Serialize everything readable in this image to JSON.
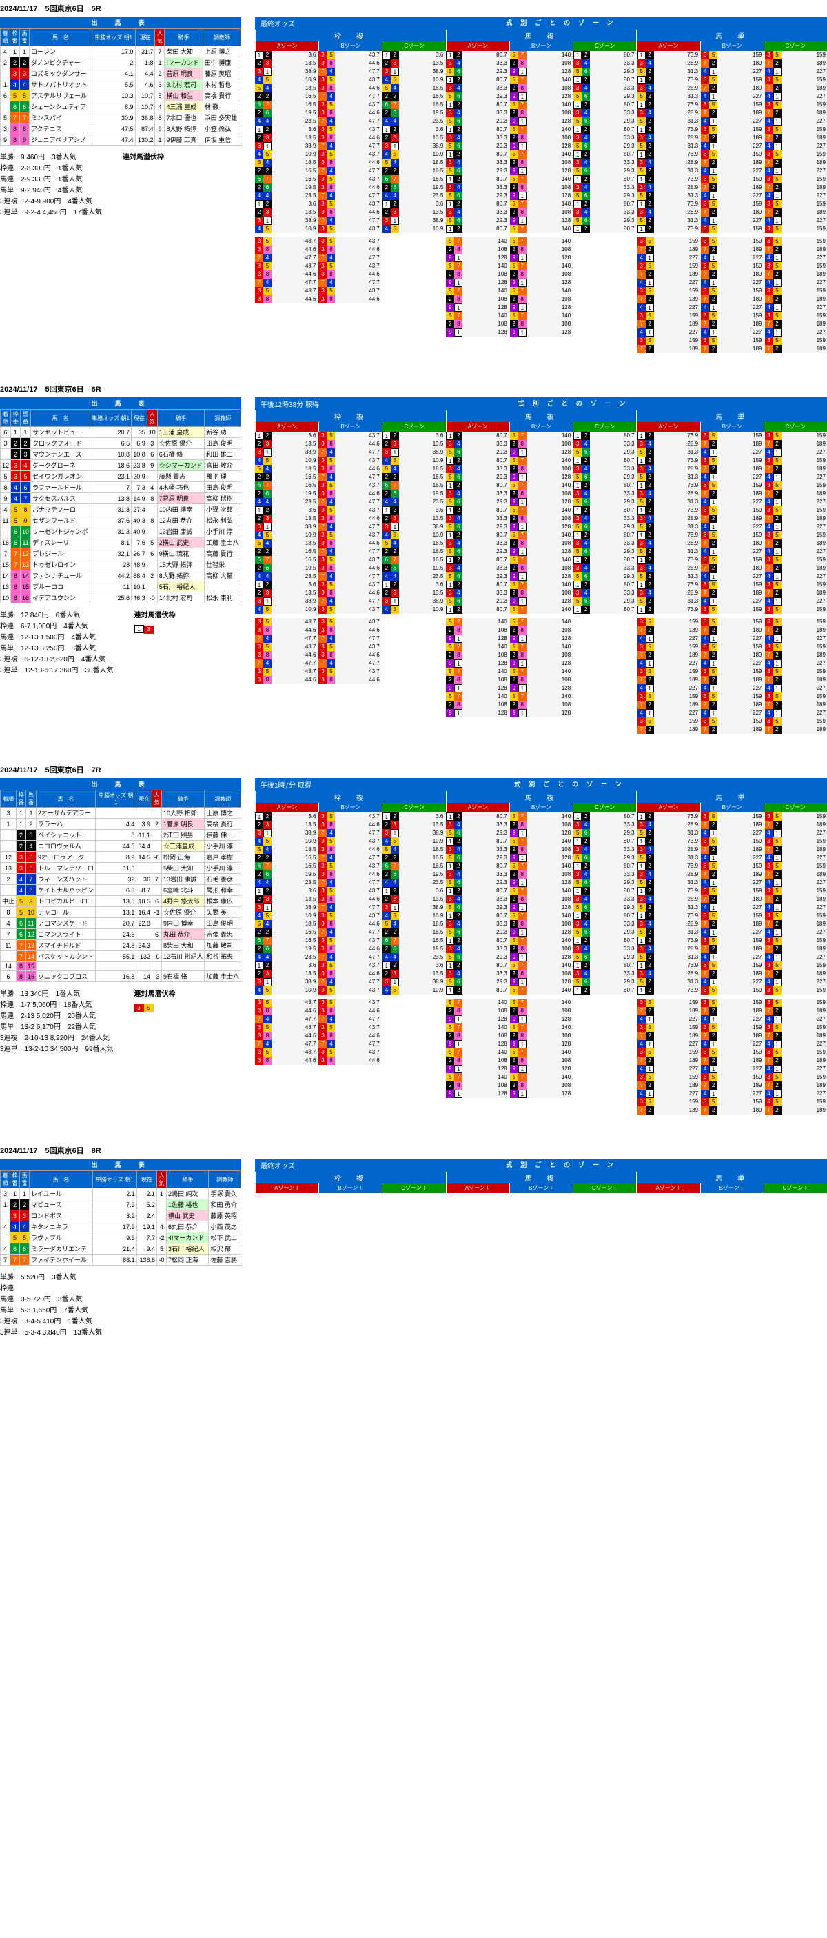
{
  "races": [
    {
      "header": "2024/11/17　5回東京6日　5R",
      "odds_label": "最終オッズ",
      "horses": [
        {
          "fin": "4",
          "waku": 1,
          "num": 1,
          "name": "ローレン",
          "o1": "17.9",
          "o2": "31.7",
          "fav": "7",
          "jk": "柴田 大知",
          "tr": "上原 博之"
        },
        {
          "fin": "2",
          "waku": 2,
          "num": 2,
          "name": "ダノンビクチャー",
          "o1": "2",
          "o2": "1.8",
          "fav": "1",
          "jk": "!マーカンド",
          "tr": "田中 博康",
          "hl": "jockey-hl2"
        },
        {
          "fin": "",
          "waku": 3,
          "num": 3,
          "name": "コズミックダンサー",
          "o1": "4.1",
          "o2": "4.4",
          "fav": "2",
          "jk": "菅原 明良",
          "tr": "藤原 英昭",
          "hl": "jockey-hl1"
        },
        {
          "fin": "1",
          "waku": 4,
          "num": 4,
          "name": "サトノパトリオット",
          "o1": "5.5",
          "o2": "4.6",
          "fav": "3",
          "jk": "3北村 宏司",
          "tr": "木村 哲也",
          "hl": "jockey-hl2"
        },
        {
          "fin": "6",
          "waku": 5,
          "num": 5,
          "name": "アステルリヴェール",
          "o1": "10.3",
          "o2": "10.7",
          "fav": "5",
          "jk": "横山 和生",
          "tr": "高橋 貴行",
          "hl": "jockey-hl1"
        },
        {
          "fin": "",
          "waku": 6,
          "num": 6,
          "name": "シェーンシュティア",
          "o1": "8.9",
          "o2": "10.7",
          "fav": "4",
          "jk": "4三浦 皇成",
          "tr": "林 徹",
          "hl": "jockey-hl3"
        },
        {
          "fin": "5",
          "waku": 7,
          "num": 7,
          "name": "ミンスパイ",
          "o1": "30.9",
          "o2": "36.8",
          "fav": "8",
          "jk": "7水口 優也",
          "tr": "浜田 多実雄"
        },
        {
          "fin": "3",
          "waku": 8,
          "num": 8,
          "name": "アクテニス",
          "o1": "47.5",
          "o2": "87.4",
          "fav": "9",
          "jk": "8大野 拓弥",
          "tr": "小笠 倫弘"
        },
        {
          "fin": "9",
          "waku": 8,
          "num": 9,
          "name": "ジュニアベリアシノ",
          "o1": "47.4",
          "o2": "130.2",
          "fav": "1",
          "jk": "9伊藤 工真",
          "tr": "伊坂 重信"
        }
      ],
      "summary": [
        "単勝　9 460円　3番人気",
        "枠連　2-8 300円　1番人気",
        "馬連　2-9 330円　1番人気",
        "馬単　9-2 940円　4番人気",
        "3連複　2-4-9 900円　4番人気",
        "3連単　9-2-4 4,450円　17番人気"
      ],
      "legend": "連対馬潜伏枠",
      "legend_nums": []
    },
    {
      "header": "2024/11/17　5回東京6日　6R",
      "odds_label": "午後12時38分 取得",
      "horses": [
        {
          "fin": "6",
          "waku": 1,
          "num": 1,
          "name": "サンセットビュー",
          "o1": "20.7",
          "o2": "35",
          "fav": "10",
          "jk": "1三浦 皇成",
          "tr": "新谷 功",
          "hl": "jockey-hl3"
        },
        {
          "fin": "3",
          "waku": 2,
          "num": 2,
          "name": "クロックフォード",
          "o1": "6.5",
          "o2": "6.9",
          "fav": "3",
          "jk": "☆佐原 優介",
          "tr": "田島 俊明"
        },
        {
          "fin": "",
          "waku": 2,
          "num": 3,
          "name": "マウンテンエース",
          "o1": "10.8",
          "o2": "10.8",
          "fav": "6",
          "jk": "6石橋 脩",
          "tr": "和田 雄二"
        },
        {
          "fin": "12",
          "waku": 3,
          "num": 4,
          "name": "グークグローネ",
          "o1": "18.6",
          "o2": "23.8",
          "fav": "9",
          "jk": "☆シマーカンド",
          "tr": "宮田 敬介",
          "hl": "jockey-hl2"
        },
        {
          "fin": "5",
          "waku": 3,
          "num": 5,
          "name": "セイウンガレオン",
          "o1": "23.1",
          "o2": "20.9",
          "fav": "",
          "jk": "藤懸 貴志",
          "tr": "萬平 理"
        },
        {
          "fin": "8",
          "waku": 4,
          "num": 6,
          "name": "ラファールドール",
          "o1": "7",
          "o2": "7.3",
          "fav": "4",
          "jk": "4木幡 巧也",
          "tr": "田島 俊明"
        },
        {
          "fin": "9",
          "waku": 4,
          "num": 7,
          "name": "サクセスバルス",
          "o1": "13.8",
          "o2": "14.9",
          "fav": "8",
          "jk": "7菅原 明良",
          "tr": "高柳 瑞樹",
          "hl": "jockey-hl1"
        },
        {
          "fin": "4",
          "waku": 5,
          "num": 8,
          "name": "パナマテソーロ",
          "o1": "31.8",
          "o2": "27.4",
          "fav": "",
          "jk": "10内田 博幸",
          "tr": "小野 次郎"
        },
        {
          "fin": "11",
          "waku": 5,
          "num": 9,
          "name": "セザンワールド",
          "o1": "37.6",
          "o2": "40.3",
          "fav": "8",
          "jk": "12丸田 恭介",
          "tr": "松永 利弘"
        },
        {
          "fin": "",
          "waku": 6,
          "num": 10,
          "name": "リーゼントジャンボ",
          "o1": "31.3",
          "o2": "40.9",
          "fav": "",
          "jk": "13岩田 康誠",
          "tr": "小手川 淳"
        },
        {
          "fin": "16",
          "waku": 6,
          "num": 11,
          "name": "ディスレーリ",
          "o1": "8.1",
          "o2": "7.6",
          "fav": "5",
          "jk": "2横山 武史",
          "tr": "工藤 圭士八",
          "hl": "jockey-hl1"
        },
        {
          "fin": "7",
          "waku": 7,
          "num": 12,
          "name": "プレジール",
          "o1": "32.1",
          "o2": "26.7",
          "fav": "6",
          "jk": "9横山 琉花",
          "tr": "高藤 貴行"
        },
        {
          "fin": "15",
          "waku": 7,
          "num": 13,
          "name": "トゥゼレロイン",
          "o1": "28",
          "o2": "48.9",
          "fav": "",
          "jk": "15大野 拓弥",
          "tr": "仕智栄"
        },
        {
          "fin": "14",
          "waku": 8,
          "num": 14,
          "name": "ファンナチュール",
          "o1": "44.2",
          "o2": "88.4",
          "fav": "2",
          "jk": "8大野 拓弥",
          "tr": "高柳 大輔"
        },
        {
          "fin": "13",
          "waku": 8,
          "num": 15,
          "name": "ブルーココ",
          "o1": "11",
          "o2": "10.1",
          "fav": "",
          "jk": "5石川 裕紀人",
          "tr": "",
          "hl": "jockey-hl3"
        },
        {
          "fin": "10",
          "waku": 8,
          "num": 16,
          "name": "イデアユウシン",
          "o1": "25.6",
          "o2": "46.3",
          "fav": "-0",
          "jk": "14北村 宏司",
          "tr": "松永 康利"
        }
      ],
      "summary": [
        "単勝　12 840円　6番人気",
        "枠連　6-7 1,000円　4番人気",
        "馬連　12-13 1,500円　4番人気",
        "馬単　12-13 3,250円　8番人気",
        "3連複　6-12-13 2,620円　4番人気",
        "3連単　12-13-6 17,360円　30番人気"
      ],
      "legend": "連対馬潜伏枠",
      "legend_nums": [
        1,
        3
      ]
    },
    {
      "header": "2024/11/17　5回東京6日　7R",
      "odds_label": "午後1時7分 取得",
      "horses": [
        {
          "fin": "3",
          "waku": 1,
          "num": 1,
          "name": "2オーサムデアラー",
          "o1": "",
          "o2": "",
          "fav": "",
          "jk": "10大野 拓弥",
          "tr": "上原 博之"
        },
        {
          "fin": "1",
          "waku": 1,
          "num": 2,
          "name": "フラーハ",
          "o1": "4.4",
          "o2": "3.9",
          "fav": "2",
          "jk": "1菅原 明良",
          "tr": "高橋 貴行",
          "hl": "jockey-hl1"
        },
        {
          "fin": "",
          "waku": 2,
          "num": 3,
          "name": "ペイシャニット",
          "o1": "8",
          "o2": "11.1",
          "fav": "",
          "jk": "2江田 照男",
          "tr": "伊藤 伸一"
        },
        {
          "fin": "",
          "waku": 2,
          "num": 4,
          "name": "ニコロヴァルム",
          "o1": "44.5",
          "o2": "34.4",
          "fav": "",
          "jk": "☆三浦皇成",
          "tr": "小手川 淳",
          "hl": "jockey-hl3"
        },
        {
          "fin": "12",
          "waku": 3,
          "num": 5,
          "name": "9オーロラアーク",
          "o1": "8.9",
          "o2": "14.5",
          "fav": "-6",
          "jk": "松岡 正海",
          "tr": "岩戸 孝樹"
        },
        {
          "fin": "13",
          "waku": 3,
          "num": 6,
          "name": "トルーマンテソーロ",
          "o1": "11.6",
          "o2": "",
          "fav": "",
          "jk": "5柴田 大知",
          "tr": "小手川 淳"
        },
        {
          "fin": "2",
          "waku": 4,
          "num": 7,
          "name": "ウィーンズハット",
          "o1": "32",
          "o2": "36",
          "fav": "7",
          "jk": "13岩田 康誠",
          "tr": "石毛 善彦"
        },
        {
          "fin": "",
          "waku": 4,
          "num": 8,
          "name": "ケイトナルハッピン",
          "o1": "6.3",
          "o2": "8.7",
          "fav": "",
          "jk": "6宮崎 北斗",
          "tr": "尾形 和幸"
        },
        {
          "fin": "中止",
          "waku": 5,
          "num": 9,
          "name": "トロピカルヒーロー",
          "o1": "13.5",
          "o2": "10.5",
          "fav": "6",
          "jk": "4野中 悠太郎",
          "tr": "根本 康広",
          "hl": "jockey-hl3"
        },
        {
          "fin": "8",
          "waku": 5,
          "num": 10,
          "name": "チャコール",
          "o1": "13.1",
          "o2": "16.4",
          "fav": "-1",
          "jk": "☆佐原 優介",
          "tr": "矢野 英一"
        },
        {
          "fin": "4",
          "waku": 6,
          "num": 11,
          "name": "アロマンスケード",
          "o1": "20.7",
          "o2": "22.8",
          "fav": "",
          "jk": "9内田 博幸",
          "tr": "田島 俊明"
        },
        {
          "fin": "7",
          "waku": 6,
          "num": 12,
          "name": "ロマンスライト",
          "o1": "24.5",
          "o2": "",
          "fav": "6",
          "jk": "丸田 恭介",
          "tr": "宗像 義忠",
          "hl": "jockey-hl1"
        },
        {
          "fin": "11",
          "waku": 7,
          "num": 13,
          "name": "スマイチドルド",
          "o1": "24.8",
          "o2": "34.3",
          "fav": "",
          "jk": "8柴田 大和",
          "tr": "加藤 敬司"
        },
        {
          "fin": "",
          "waku": 7,
          "num": 14,
          "name": "バスケットカウント",
          "o1": "55.1",
          "o2": "132",
          "fav": "-0",
          "jk": "12石川 裕紀人",
          "tr": "和谷 拓央"
        },
        {
          "fin": "14",
          "waku": 8,
          "num": 15,
          "name": "",
          "o1": "",
          "o2": "",
          "fav": "",
          "jk": "",
          "tr": ""
        },
        {
          "fin": "6",
          "waku": 8,
          "num": 16,
          "name": "ソニックコブロス",
          "o1": "16.8",
          "o2": "14",
          "fav": "-3",
          "jk": "9石橋 脩",
          "tr": "加藤 圭士八"
        }
      ],
      "summary": [
        "単勝　13 340円　1番人気",
        "枠連　1-7 5,060円　18番人気",
        "馬連　2-13 5,020円　20番人気",
        "馬単　13-2 6,170円　22番人気",
        "3連複　2-10-13 8,220円　24番人気",
        "3連単　13-2-10 34,500円　99番人気"
      ],
      "legend": "連対馬潜伏枠",
      "legend_nums": [
        3,
        5
      ]
    },
    {
      "header": "2024/11/17　5回東京6日　8R",
      "odds_label": "最終オッズ",
      "horses": [
        {
          "fin": "3",
          "waku": 1,
          "num": 1,
          "name": "レイユール",
          "o1": "2.1",
          "o2": "2.1",
          "fav": "1",
          "jk": "2嶋田 純次",
          "tr": "手塚 貴久",
          "hl": ""
        },
        {
          "fin": "1",
          "waku": 2,
          "num": 2,
          "name": "マビュース",
          "o1": "7.3",
          "o2": "5.2",
          "fav": "",
          "jk": "1佐藤 裕也",
          "tr": "和田 勇介",
          "hl": "jockey-hl2"
        },
        {
          "fin": "",
          "waku": 3,
          "num": 3,
          "name": "ロンドボス",
          "o1": "3.2",
          "o2": "2.4",
          "fav": "",
          "jk": "横山 武史",
          "tr": "藤原 英昭",
          "hl": "jockey-hl1"
        },
        {
          "fin": "4",
          "waku": 4,
          "num": 4,
          "name": "キタノニキラ",
          "o1": "17.3",
          "o2": "19.1",
          "fav": "4",
          "jk": "6丸田 恭介",
          "tr": "小西 茂之"
        },
        {
          "fin": "",
          "waku": 5,
          "num": 5,
          "name": "ラヴァブル",
          "o1": "9.3",
          "o2": "7.7",
          "fav": "-2",
          "jk": "4!マーカンド",
          "tr": "松下 武士",
          "hl": "jockey-hl2"
        },
        {
          "fin": "4",
          "waku": 6,
          "num": 6,
          "name": "ミラーダカリエンテ",
          "o1": "21.4",
          "o2": "9.4",
          "fav": "5",
          "jk": "3石川 裕紀人",
          "tr": "相沢 郁",
          "hl": "jockey-hl3"
        },
        {
          "fin": "7",
          "waku": 7,
          "num": 7,
          "name": "ファイテンホイール",
          "o1": "88.1",
          "o2": "136.6",
          "fav": "-0",
          "jk": "7松岡 正海",
          "tr": "佐藤 吉勝"
        }
      ],
      "summary": [
        "単勝　5 520円　3番人気",
        "枠連",
        "馬連　3-5 720円　3番人気",
        "馬単　5-3 1,650円　7番人気",
        "3連複　3-4-5 410円　1番人気",
        "3連単　5-3-4 3,840円　13番人気"
      ],
      "legend": "",
      "legend_nums": []
    }
  ],
  "zone_labels": {
    "title": "式別ごとのゾーン",
    "cats": [
      "枠　複",
      "馬　複",
      "馬　単"
    ],
    "subs": [
      "Aゾーン＋",
      "Bゾーン＋",
      "Cゾーン＋",
      "Aゾーン＋",
      "Bゾーン＋",
      "Cゾーン＋",
      "Aゾーン＋",
      "Bゾーン＋",
      "Cゾーン＋"
    ]
  },
  "shutuba_headers": {
    "title": "出　馬　表",
    "fin": "着順",
    "waku": "枠番",
    "num": "馬番",
    "name": "馬　名",
    "o1": "単勝オッズ 朝1",
    "o2": "現在",
    "rank": "順",
    "fav": "人気",
    "jk": "騎手",
    "tr": "調教師"
  },
  "sample_zone_lines": {
    "waku_a": [
      {
        "n": [
          1,
          2
        ],
        "v": "3.6"
      },
      {
        "n": [
          2,
          3
        ],
        "v": "13.5"
      },
      {
        "n": [
          3,
          1
        ],
        "v": "38.9"
      },
      {
        "n": [
          4,
          5
        ],
        "v": "10.9"
      },
      {
        "n": [
          5,
          4
        ],
        "v": "18.5"
      },
      {
        "n": [
          2,
          2
        ],
        "v": "16.5"
      },
      {
        "n": [
          6,
          7
        ],
        "v": "16.5"
      },
      {
        "n": [
          2,
          6
        ],
        "v": "19.5"
      },
      {
        "n": [
          4,
          4
        ],
        "v": "23.5"
      }
    ],
    "waku_b": [
      {
        "n": [
          3,
          5
        ],
        "v": "43.7"
      },
      {
        "n": [
          3,
          8
        ],
        "v": "44.6"
      },
      {
        "n": [
          7,
          4
        ],
        "v": "47.7"
      }
    ],
    "uma_a": [
      {
        "n": [
          1,
          2
        ],
        "v": "80.7"
      },
      {
        "n": [
          3,
          4
        ],
        "v": "33.3"
      },
      {
        "n": [
          5,
          6
        ],
        "v": "29.3"
      }
    ],
    "uma_b": [
      {
        "n": [
          5,
          7
        ],
        "v": "140"
      },
      {
        "n": [
          2,
          8
        ],
        "v": "108"
      },
      {
        "n": [
          9,
          1
        ],
        "v": "128"
      }
    ],
    "tan_a": [
      {
        "n": [
          1,
          2
        ],
        "v": "73.9"
      },
      {
        "n": [
          3,
          4
        ],
        "v": "28.9"
      },
      {
        "n": [
          5,
          2
        ],
        "v": "31.3"
      }
    ],
    "tan_c": [
      {
        "n": [
          3,
          5
        ],
        "v": "159"
      },
      {
        "n": [
          7,
          2
        ],
        "v": "189"
      },
      {
        "n": [
          4,
          1
        ],
        "v": "227"
      }
    ]
  }
}
